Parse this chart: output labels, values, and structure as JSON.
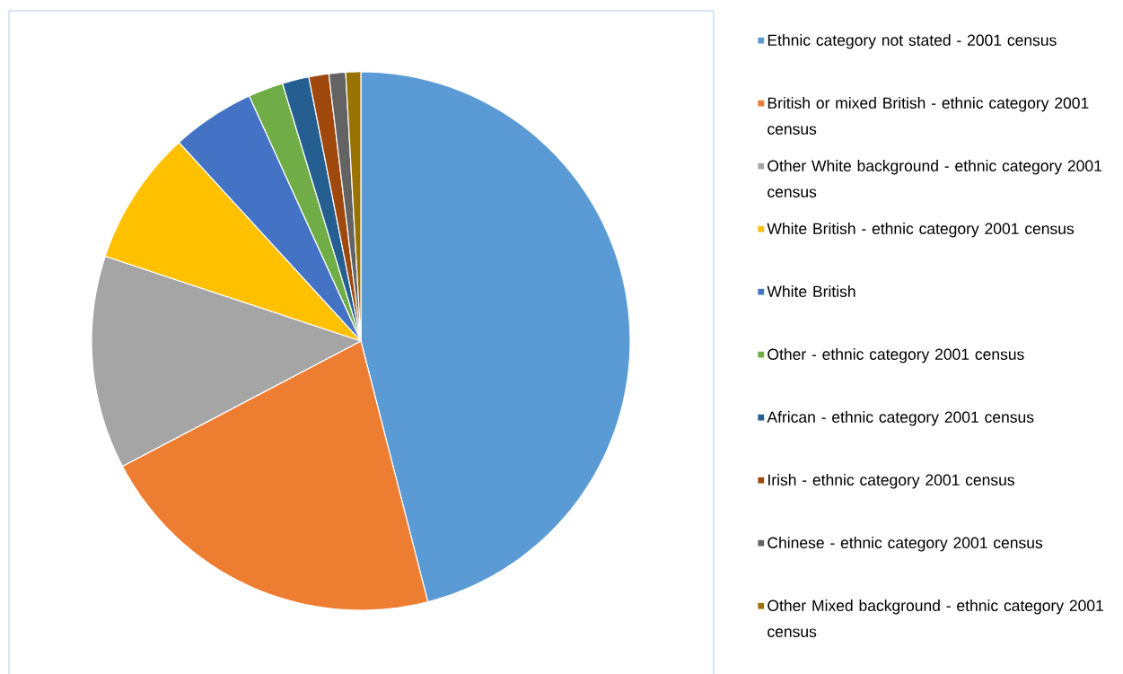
{
  "chart_data": {
    "type": "pie",
    "categories": [
      "Ethnic category not stated - 2001 census",
      "British or mixed British - ethnic category 2001 census",
      "Other White background - ethnic category 2001 census",
      "White British - ethnic category 2001 census",
      "White British",
      "Other - ethnic category 2001 census",
      "African - ethnic category 2001 census",
      "Irish - ethnic category 2001 census",
      "Chinese - ethnic category 2001 census",
      "Other Mixed background - ethnic category 2001 census"
    ],
    "values": [
      46,
      21.3,
      12.8,
      8.1,
      5.0,
      2.1,
      1.6,
      1.2,
      1.0,
      0.9
    ],
    "colors": [
      "#5b9bd5",
      "#ed7d31",
      "#a5a5a5",
      "#ffc000",
      "#4472c4",
      "#70ad47",
      "#255e91",
      "#9e480e",
      "#636363",
      "#997300"
    ],
    "legend": "right"
  }
}
